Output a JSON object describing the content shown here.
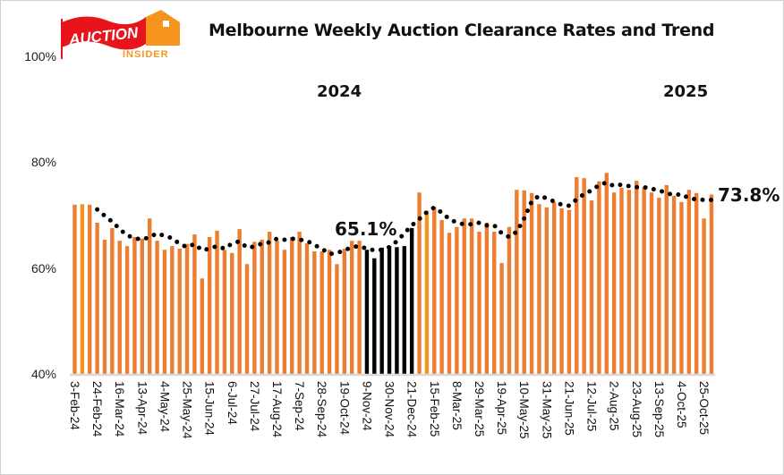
{
  "chart_data": {
    "type": "bar",
    "title": "Melbourne Weekly Auction Clearance Rates and Trend",
    "ylim": [
      40,
      100
    ],
    "y_ticks": [
      "40%",
      "60%",
      "80%",
      "100%"
    ],
    "y_tick_values": [
      40,
      60,
      80,
      100
    ],
    "grid": false,
    "legend": "none",
    "tick_labels": [
      "3-Feb-24",
      "24-Feb-24",
      "16-Mar-24",
      "13-Apr-24",
      "4-May-24",
      "25-May-24",
      "15-Jun-24",
      "6-Jul-24",
      "27-Jul-24",
      "17-Aug-24",
      "7-Sep-24",
      "28-Sep-24",
      "19-Oct-24",
      "9-Nov-24",
      "30-Nov-24",
      "21-Dec-24",
      "15-Feb-25",
      "8-Mar-25",
      "29-Mar-25",
      "19-Apr-25",
      "10-May-25",
      "31-May-25",
      "21-Jun-25",
      "12-Jul-25",
      "2-Aug-25",
      "23-Aug-25",
      "13-Sep-25",
      "4-Oct-25",
      "25-Oct-25"
    ],
    "tick_every": 3,
    "series": [
      {
        "type": "bar",
        "values": [
          71.9,
          72.0,
          71.9,
          68.5,
          65.3,
          67.5,
          65.1,
          64.1,
          65.8,
          65.5,
          69.3,
          65.1,
          63.4,
          64.1,
          63.6,
          64.5,
          66.3,
          58.0,
          65.8,
          67.0,
          63.4,
          62.8,
          67.3,
          60.7,
          64.9,
          65.3,
          66.8,
          65.1,
          63.4,
          65.8,
          66.8,
          64.6,
          63.1,
          63.1,
          63.4,
          60.7,
          63.6,
          65.1,
          65.1,
          63.4,
          61.8,
          63.8,
          64.1,
          63.9,
          64.1,
          67.5,
          74.2,
          70.7,
          71.5,
          69.0,
          66.6,
          67.7,
          69.3,
          69.3,
          66.8,
          68.5,
          66.8,
          60.9,
          67.7,
          74.7,
          74.6,
          74.1,
          72.0,
          71.4,
          72.4,
          71.2,
          70.9,
          77.1,
          76.9,
          72.7,
          76.3,
          77.9,
          74.2,
          75.1,
          74.7,
          76.4,
          75.2,
          74.2,
          73.2,
          75.6,
          73.6,
          72.4,
          74.7,
          74.1,
          69.3,
          73.8
        ],
        "highlight_black_range": [
          40,
          46
        ],
        "light_bars": [
          2,
          48
        ]
      },
      {
        "type": "line",
        "style": "dotted",
        "values": [
          null,
          null,
          null,
          71.0,
          69.8,
          68.7,
          67.3,
          66.1,
          65.6,
          65.3,
          65.8,
          66.5,
          66.0,
          65.6,
          64.5,
          63.9,
          64.5,
          63.3,
          63.6,
          64.1,
          63.6,
          64.6,
          65.0,
          63.8,
          64.0,
          64.6,
          64.8,
          65.5,
          65.3,
          65.5,
          65.3,
          65.1,
          64.3,
          63.6,
          62.6,
          62.8,
          63.3,
          63.9,
          64.1,
          63.6,
          63.3,
          63.4,
          63.9,
          65.0,
          66.5,
          68.0,
          69.2,
          70.5,
          71.4,
          70.4,
          69.2,
          68.5,
          68.2,
          68.2,
          68.5,
          68.0,
          68.0,
          66.5,
          65.8,
          66.8,
          69.3,
          72.5,
          73.6,
          73.1,
          72.5,
          71.9,
          71.7,
          72.9,
          73.9,
          74.6,
          75.6,
          76.1,
          75.4,
          75.7,
          75.4,
          75.2,
          75.2,
          74.9,
          74.6,
          74.1,
          73.7,
          73.9,
          73.1,
          72.9,
          72.8,
          72.8
        ]
      }
    ],
    "annotations": {
      "y2024": "2024",
      "y2025": "2025",
      "low_label": "65.1%",
      "latest_label": "73.8%"
    },
    "colors": {
      "bar": "#ED7D31",
      "bar_light": "#F7941D",
      "bar_highlight": "#000000",
      "trend": "#000000",
      "axis": "#D9D9D9"
    }
  },
  "logo": {
    "word1": "AUCTION",
    "word2": "INSIDER",
    "red": "#E8141B",
    "orange": "#F7941D"
  }
}
